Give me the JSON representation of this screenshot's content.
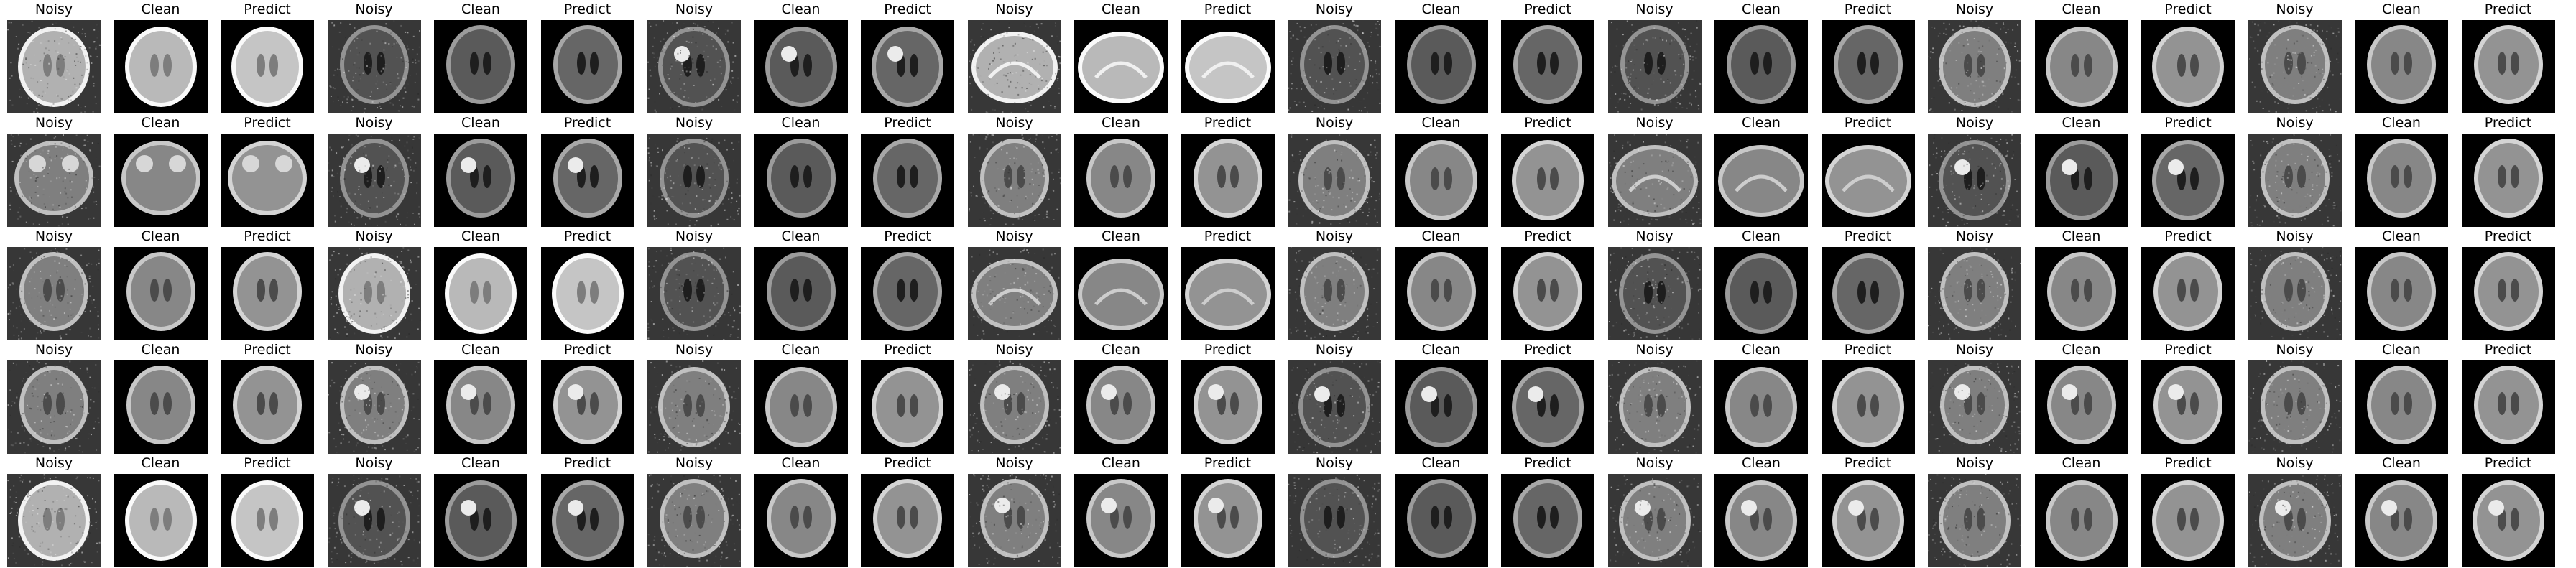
{
  "figure": {
    "labels": [
      "Noisy",
      "Clean",
      "Predict"
    ],
    "rows": [
      {
        "samples": [
          {
            "view": "axial",
            "tone": "light"
          },
          {
            "view": "coronal",
            "tone": "dark"
          },
          {
            "view": "axial",
            "tone": "dark",
            "lesion": true
          },
          {
            "view": "sagittal",
            "tone": "light"
          },
          {
            "view": "coronal",
            "tone": "dark"
          },
          {
            "view": "coronal",
            "tone": "dark"
          },
          {
            "view": "axial",
            "tone": "mid"
          },
          {
            "view": "coronal",
            "tone": "mid"
          }
        ]
      },
      {
        "samples": [
          {
            "view": "orbit",
            "tone": "mid"
          },
          {
            "view": "coronal",
            "tone": "dark",
            "lesion": true
          },
          {
            "view": "coronal",
            "tone": "dark"
          },
          {
            "view": "coronal",
            "tone": "mid"
          },
          {
            "view": "axial",
            "tone": "mid"
          },
          {
            "view": "sagittal",
            "tone": "mid"
          },
          {
            "view": "axial",
            "tone": "dark",
            "lesion": true
          },
          {
            "view": "coronal",
            "tone": "mid"
          }
        ]
      },
      {
        "samples": [
          {
            "view": "coronal",
            "tone": "mid"
          },
          {
            "view": "axial",
            "tone": "light"
          },
          {
            "view": "coronal",
            "tone": "dark"
          },
          {
            "view": "sagittal",
            "tone": "mid"
          },
          {
            "view": "coronal",
            "tone": "mid"
          },
          {
            "view": "axial",
            "tone": "dark"
          },
          {
            "view": "coronal",
            "tone": "mid"
          },
          {
            "view": "coronal",
            "tone": "mid"
          }
        ]
      },
      {
        "samples": [
          {
            "view": "coronal",
            "tone": "mid"
          },
          {
            "view": "coronal",
            "tone": "mid",
            "lesion": true
          },
          {
            "view": "axial",
            "tone": "mid"
          },
          {
            "view": "coronal",
            "tone": "mid",
            "lesion": true
          },
          {
            "view": "axial",
            "tone": "dark",
            "lesion": true
          },
          {
            "view": "axial",
            "tone": "mid"
          },
          {
            "view": "coronal",
            "tone": "mid",
            "lesion": true
          },
          {
            "view": "coronal",
            "tone": "mid"
          }
        ]
      },
      {
        "samples": [
          {
            "view": "axial",
            "tone": "light"
          },
          {
            "view": "axial",
            "tone": "dark",
            "lesion": true
          },
          {
            "view": "coronal",
            "tone": "mid"
          },
          {
            "view": "coronal",
            "tone": "mid",
            "lesion": true
          },
          {
            "view": "coronal",
            "tone": "dark"
          },
          {
            "view": "axial",
            "tone": "mid",
            "lesion": true
          },
          {
            "view": "axial",
            "tone": "mid"
          },
          {
            "view": "axial",
            "tone": "mid",
            "lesion": true
          }
        ]
      }
    ]
  }
}
